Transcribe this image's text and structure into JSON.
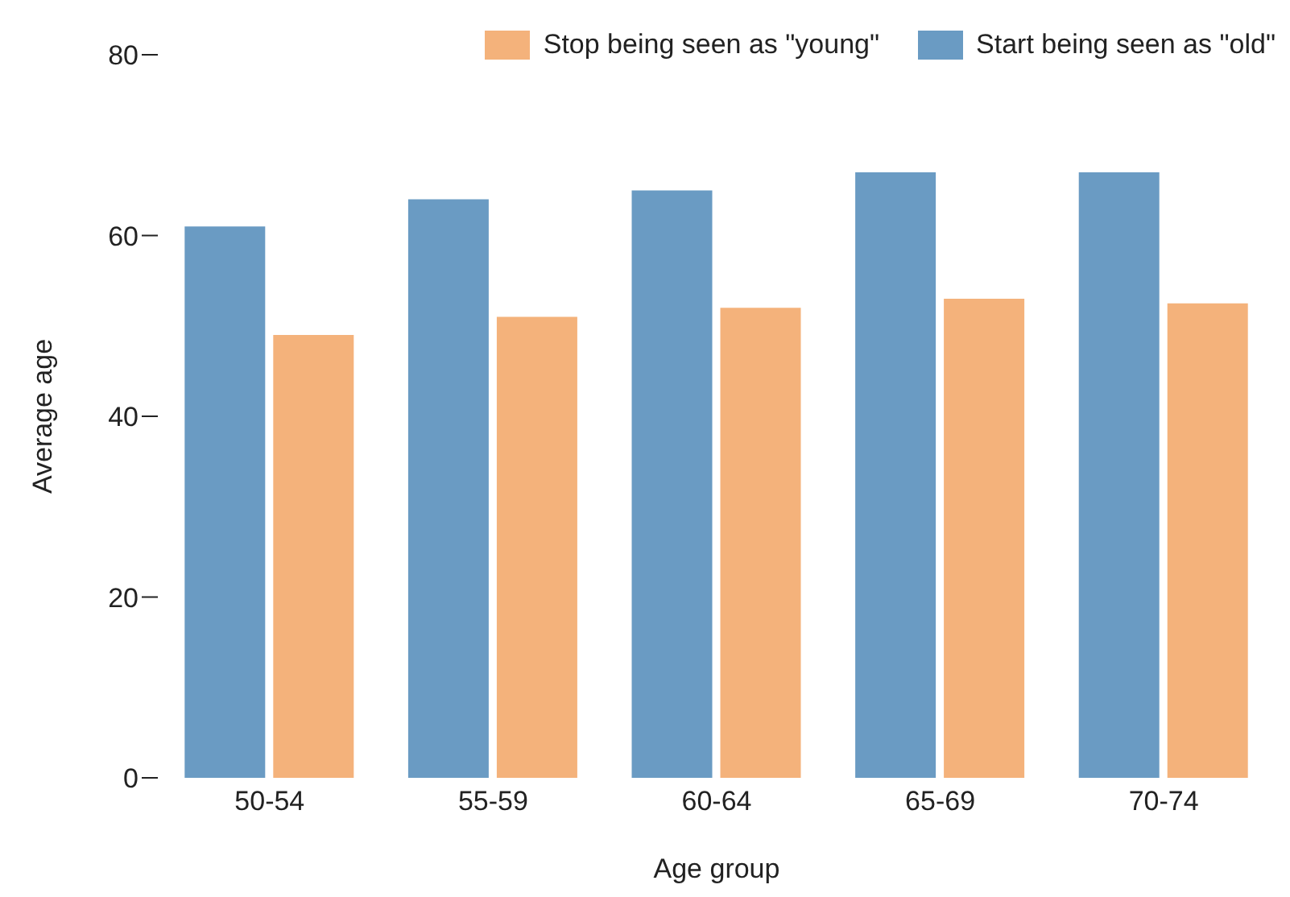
{
  "chart_data": {
    "type": "bar",
    "xlabel": "Age group",
    "ylabel": "Average age",
    "categories": [
      "50-54",
      "55-59",
      "60-64",
      "65-69",
      "70-74"
    ],
    "series": [
      {
        "name": "Start being seen as \"old\"",
        "color": "#6a9bc3",
        "values": [
          61,
          64,
          65,
          67,
          67
        ]
      },
      {
        "name": "Stop being seen as \"young\"",
        "color": "#f4b27b",
        "values": [
          49,
          51,
          52,
          53,
          52.5
        ]
      }
    ],
    "ylim": [
      0,
      80
    ],
    "yticks": [
      0,
      20,
      40,
      60,
      80
    ],
    "grid": false,
    "legend": "top right"
  }
}
